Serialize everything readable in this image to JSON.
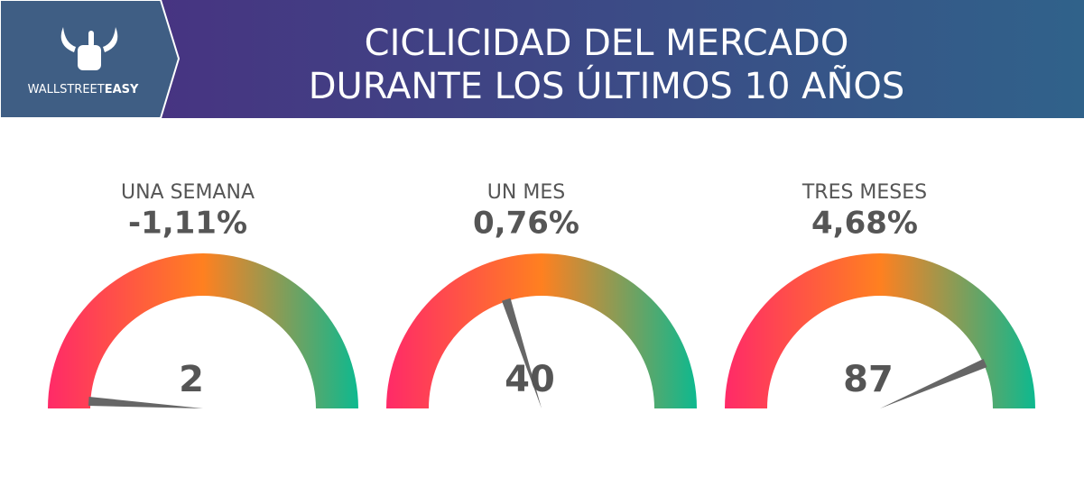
{
  "header": {
    "title": [
      "CICLICIDAD DEL MERCADO",
      "DURANTE LOS ÚLTIMOS 10 AÑOS"
    ],
    "logo": [
      "WALLSTREET",
      "EASY"
    ]
  },
  "chart_data": [
    {
      "type": "gauge",
      "title": "UNA SEMANA",
      "subtitle": "-1,11%",
      "value": 2,
      "ylim": [
        0,
        100
      ],
      "colors": [
        "#ff2a68",
        "#ff8020",
        "#0db98f"
      ]
    },
    {
      "type": "gauge",
      "title": "UN MES",
      "subtitle": "0,76%",
      "value": 40,
      "ylim": [
        0,
        100
      ],
      "colors": [
        "#ff2a68",
        "#ff8020",
        "#0db98f"
      ]
    },
    {
      "type": "gauge",
      "title": "TRES MESES",
      "subtitle": "4,68%",
      "value": 87,
      "ylim": [
        0,
        100
      ],
      "colors": [
        "#ff2a68",
        "#ff8020",
        "#0db98f"
      ]
    }
  ]
}
